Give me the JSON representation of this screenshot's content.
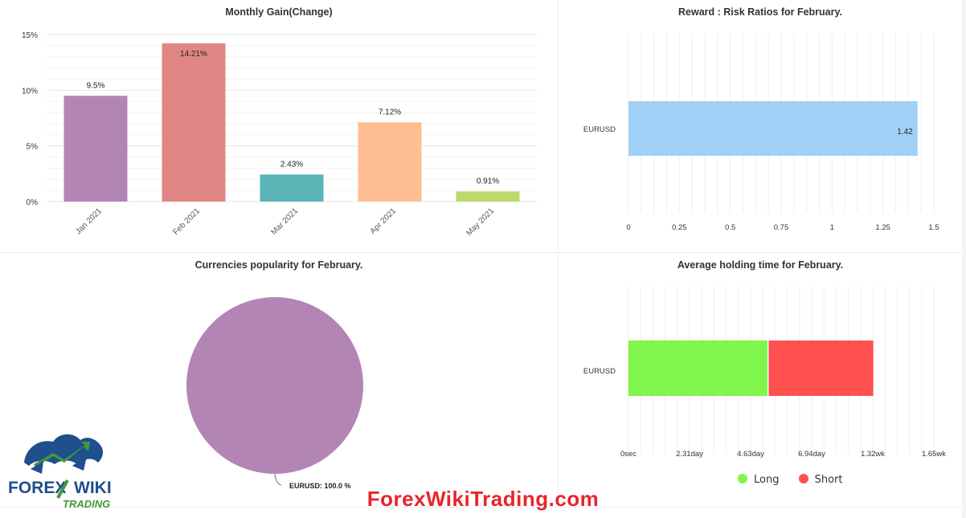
{
  "colors": {
    "bars": [
      "#b385b5",
      "#e08785",
      "#5bb4b6",
      "#ffbf92",
      "#bcd96b"
    ],
    "rr_bar": "#a0d0f5",
    "pie": "#b385b5",
    "long": "#80f54b",
    "short": "#ff4f4f",
    "watermark": "#e8242b",
    "logo_blue": "#1f4f8c",
    "logo_green": "#3f9a3c"
  },
  "watermark": "ForexWikiTrading.com",
  "logo": {
    "word1": "FOREX",
    "word2": "WIKI",
    "word3": "TRADING"
  },
  "charts": [
    {
      "type": "bar",
      "title": "Monthly Gain(Change)",
      "categories": [
        "Jan 2021",
        "Feb 2021",
        "Mar 2021",
        "Apr 2021",
        "May 2021"
      ],
      "values": [
        9.5,
        14.21,
        2.43,
        7.12,
        0.91
      ],
      "data_labels": [
        "9.5%",
        "14.21%",
        "2.43%",
        "7.12%",
        "0.91%"
      ],
      "yticks": [
        "0%",
        "5%",
        "10%",
        "15%"
      ],
      "ylim": [
        0,
        15
      ],
      "grid": true
    },
    {
      "type": "bar",
      "orientation": "horizontal",
      "title": "Reward : Risk Ratios for February.",
      "categories": [
        "EURUSD"
      ],
      "values": [
        1.42
      ],
      "data_labels": [
        "1.42"
      ],
      "xticks": [
        "0",
        "0.25",
        "0.5",
        "0.75",
        "1",
        "1.25",
        "1.5"
      ],
      "xlim": [
        0,
        1.5
      ],
      "grid": true
    },
    {
      "type": "pie",
      "title": "Currencies popularity for February.",
      "slices": [
        {
          "label": "EURUSD",
          "value": 100.0,
          "display": "EURUSD: 100.0 %"
        }
      ]
    },
    {
      "type": "bar",
      "orientation": "horizontal",
      "stacked": true,
      "title": "Average holding time for February.",
      "categories": [
        "EURUSD"
      ],
      "series": [
        {
          "name": "Long",
          "values": [
            5.28
          ]
        },
        {
          "name": "Short",
          "values": [
            3.98
          ]
        }
      ],
      "xticks": [
        "0sec",
        "2.31day",
        "4.63day",
        "6.94day",
        "1.32wk",
        "1.65wk"
      ],
      "xlim": [
        0,
        11.55
      ],
      "legend": "bottom",
      "grid": true
    }
  ]
}
